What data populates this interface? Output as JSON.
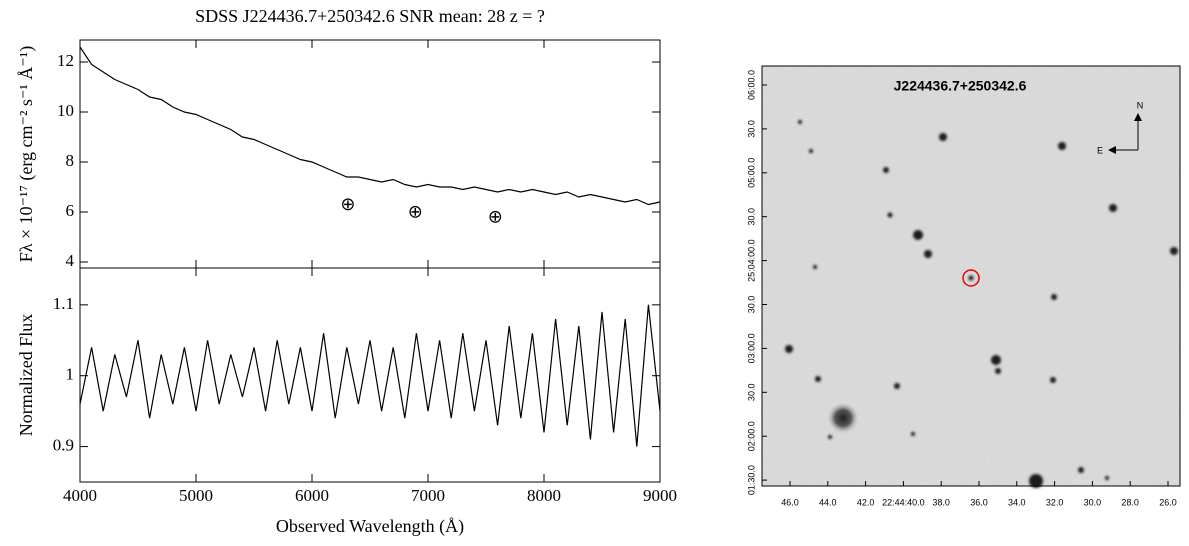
{
  "chart_data": [
    {
      "type": "line",
      "title": "SDSS J224436.7+250342.6 SNR mean:  28  z = ?",
      "y_label": "Fλ × 10⁻¹⁷ (erg cm⁻² s⁻¹ Å⁻¹)",
      "x": [
        4000,
        4100,
        4200,
        4300,
        4400,
        4500,
        4600,
        4700,
        4800,
        4900,
        5000,
        5100,
        5200,
        5300,
        5400,
        5500,
        5600,
        5700,
        5800,
        5900,
        6000,
        6100,
        6200,
        6300,
        6400,
        6500,
        6600,
        6700,
        6800,
        6900,
        7000,
        7100,
        7200,
        7300,
        7400,
        7500,
        7600,
        7700,
        7800,
        7900,
        8000,
        8100,
        8200,
        8300,
        8400,
        8500,
        8600,
        8700,
        8800,
        8900,
        9000
      ],
      "values": [
        12.6,
        11.9,
        11.6,
        11.3,
        11.1,
        10.9,
        10.6,
        10.5,
        10.2,
        10.0,
        9.9,
        9.7,
        9.5,
        9.3,
        9.0,
        8.9,
        8.7,
        8.5,
        8.3,
        8.1,
        8.0,
        7.8,
        7.6,
        7.4,
        7.4,
        7.3,
        7.2,
        7.3,
        7.1,
        7.0,
        7.1,
        7.0,
        7.0,
        6.9,
        7.0,
        6.9,
        6.8,
        6.9,
        6.8,
        6.9,
        6.8,
        6.7,
        6.8,
        6.6,
        6.7,
        6.6,
        6.5,
        6.4,
        6.5,
        6.3,
        6.4
      ],
      "color": "#000000",
      "xlim": [
        4000,
        9000
      ],
      "ylim": [
        3.76,
        12.88
      ],
      "xticks": [
        4000,
        5000,
        6000,
        7000,
        8000,
        9000
      ],
      "yticks": [
        4,
        6,
        8,
        10,
        12
      ],
      "annotations": [
        {
          "text": "⊕",
          "x": 6310,
          "y": 6.25
        },
        {
          "text": "⊕",
          "x": 6890,
          "y": 5.95
        },
        {
          "text": "⊕",
          "x": 7580,
          "y": 5.75
        }
      ]
    },
    {
      "type": "line",
      "y_label": "Normalized Flux",
      "x_label": "Observed Wavelength (Å)",
      "x": [
        4000,
        4100,
        4200,
        4300,
        4400,
        4500,
        4600,
        4700,
        4800,
        4900,
        5000,
        5100,
        5200,
        5300,
        5400,
        5500,
        5600,
        5700,
        5800,
        5900,
        6000,
        6100,
        6200,
        6300,
        6400,
        6500,
        6600,
        6700,
        6800,
        6900,
        7000,
        7100,
        7200,
        7300,
        7400,
        7500,
        7600,
        7700,
        7800,
        7900,
        8000,
        8100,
        8200,
        8300,
        8400,
        8500,
        8600,
        8700,
        8800,
        8900,
        9000
      ],
      "values": [
        0.96,
        1.04,
        0.95,
        1.03,
        0.97,
        1.05,
        0.94,
        1.03,
        0.96,
        1.04,
        0.95,
        1.05,
        0.96,
        1.03,
        0.97,
        1.04,
        0.95,
        1.05,
        0.96,
        1.04,
        0.95,
        1.06,
        0.94,
        1.04,
        0.96,
        1.05,
        0.95,
        1.04,
        0.94,
        1.06,
        0.95,
        1.05,
        0.94,
        1.06,
        0.95,
        1.05,
        0.93,
        1.07,
        0.94,
        1.06,
        0.92,
        1.08,
        0.93,
        1.07,
        0.91,
        1.09,
        0.92,
        1.08,
        0.9,
        1.1,
        0.95
      ],
      "color": "#000000",
      "xlim": [
        4000,
        9000
      ],
      "ylim": [
        0.85,
        1.152
      ],
      "xticks": [
        4000,
        5000,
        6000,
        7000,
        8000,
        9000
      ],
      "yticks": [
        0.9,
        1,
        1.1
      ]
    }
  ],
  "finding_chart": {
    "title": "J224436.7+250342.6",
    "x_tick_labels": [
      "46.0",
      "44.0",
      "42.0",
      "22:44:40.0",
      "38.0",
      "36.0",
      "34.0",
      "32.0",
      "30.0",
      "28.0",
      "26.0"
    ],
    "y_tick_labels": [
      "06:00.0",
      "30.0",
      "05:00.0",
      "30.0",
      "25:04:00.0",
      "30.0",
      "03:00.0",
      "30.0",
      "02:00.0",
      "01:30.0"
    ],
    "north": "N",
    "east": "E"
  }
}
